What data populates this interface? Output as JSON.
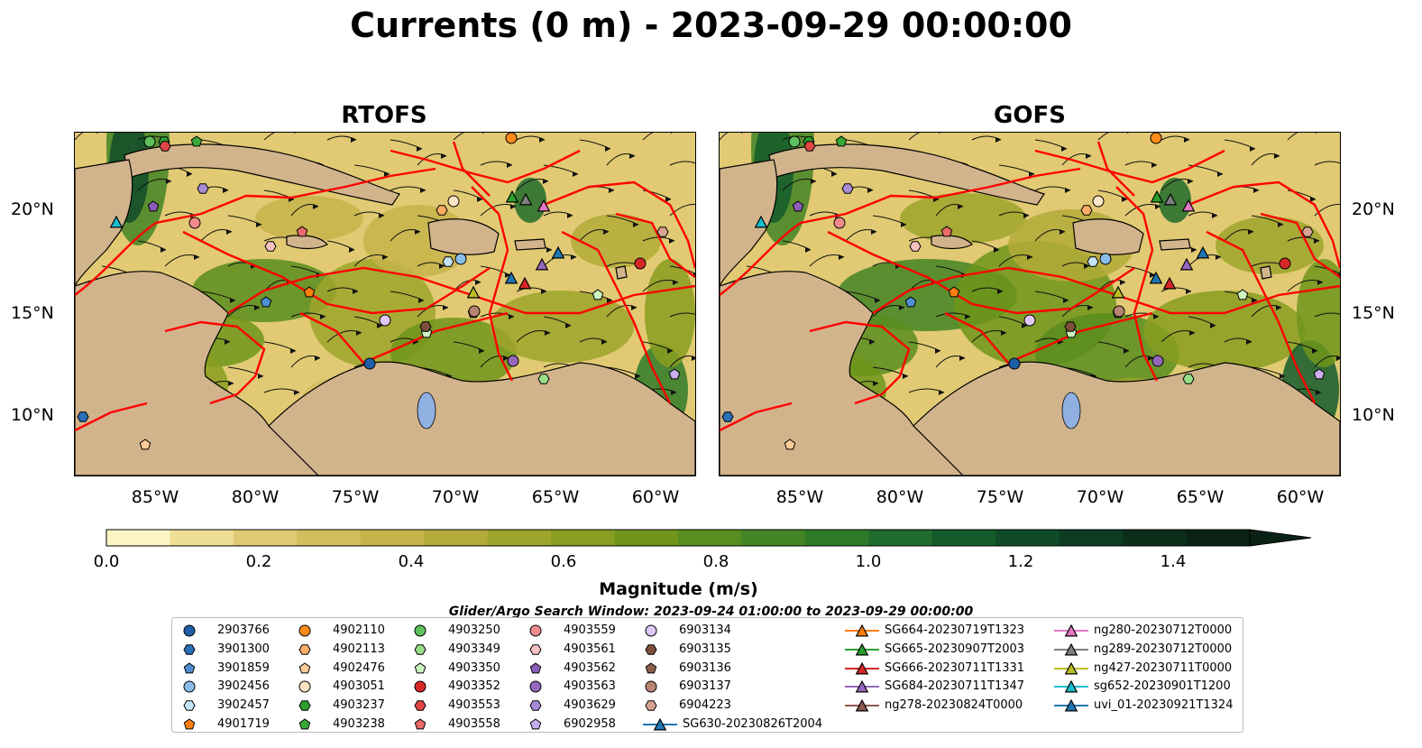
{
  "title": "Currents (0 m) - 2023-09-29 00:00:00",
  "panels": [
    {
      "title": "RTOFS"
    },
    {
      "title": "GOFS"
    }
  ],
  "axes": {
    "lat_ticks": [
      "20°N",
      "15°N",
      "10°N"
    ],
    "lon_ticks": [
      "85°W",
      "80°W",
      "75°W",
      "70°W",
      "65°W",
      "60°W"
    ],
    "lat_range": [
      7,
      24
    ],
    "lon_range": [
      -89,
      -58
    ]
  },
  "colorbar": {
    "label": "Magnitude (m/s)",
    "ticks": [
      "0.0",
      "0.2",
      "0.4",
      "0.6",
      "0.8",
      "1.0",
      "1.2",
      "1.4"
    ],
    "range": [
      0,
      1.5
    ],
    "extend": "max",
    "colors": [
      "#fbf5c4",
      "#efdf95",
      "#e1ca73",
      "#d3bd5d",
      "#c6b44a",
      "#b3ab39",
      "#9ea52c",
      "#889e20",
      "#6f951a",
      "#588d1f",
      "#438424",
      "#2f7a28",
      "#206c2c",
      "#145c2b",
      "#104b28",
      "#0e3c22",
      "#0c2e1b",
      "#0a2215"
    ]
  },
  "search_window": "Glider/Argo Search Window: 2023-09-24 01:00:00 to 2023-09-29 00:00:00",
  "map_colors": {
    "land": "#d2b48c",
    "eez": "#ff0000",
    "lake": "#8fb0e0"
  },
  "legend": {
    "argo": [
      {
        "name": "2903766",
        "marker": "circle",
        "color": "#1f5fa8"
      },
      {
        "name": "3901300",
        "marker": "hexagon",
        "color": "#2a6fb8"
      },
      {
        "name": "3901859",
        "marker": "pentagon",
        "color": "#4f8fcf"
      },
      {
        "name": "3902456",
        "marker": "circle",
        "color": "#88bde8"
      },
      {
        "name": "3902457",
        "marker": "hexagon",
        "color": "#c6e2f7"
      },
      {
        "name": "4901719",
        "marker": "pentagon",
        "color": "#ff7f0e"
      },
      {
        "name": "4902110",
        "marker": "circle",
        "color": "#ff8c1a"
      },
      {
        "name": "4902113",
        "marker": "hexagon",
        "color": "#ffad66"
      },
      {
        "name": "4902476",
        "marker": "pentagon",
        "color": "#ffcc99"
      },
      {
        "name": "4903051",
        "marker": "circle",
        "color": "#ffe3c4"
      },
      {
        "name": "4903237",
        "marker": "hexagon",
        "color": "#2ca02c"
      },
      {
        "name": "4903238",
        "marker": "pentagon",
        "color": "#38a838"
      },
      {
        "name": "4903250",
        "marker": "circle",
        "color": "#5cc05c"
      },
      {
        "name": "4903349",
        "marker": "hexagon",
        "color": "#98df8a"
      },
      {
        "name": "4903350",
        "marker": "pentagon",
        "color": "#cdf3c0"
      },
      {
        "name": "4903352",
        "marker": "circle",
        "color": "#d62728"
      },
      {
        "name": "4903553",
        "marker": "hexagon",
        "color": "#e04545"
      },
      {
        "name": "4903558",
        "marker": "pentagon",
        "color": "#ea6a6a"
      },
      {
        "name": "4903559",
        "marker": "circle",
        "color": "#f08a8a"
      },
      {
        "name": "4903561",
        "marker": "hexagon",
        "color": "#f8c1c1"
      },
      {
        "name": "4903562",
        "marker": "pentagon",
        "color": "#8a5cb8"
      },
      {
        "name": "4903563",
        "marker": "circle",
        "color": "#9467bd"
      },
      {
        "name": "4903629",
        "marker": "hexagon",
        "color": "#a98bd4"
      },
      {
        "name": "6902958",
        "marker": "pentagon",
        "color": "#c9aff0"
      },
      {
        "name": "6903134",
        "marker": "circle",
        "color": "#dfc7f7"
      },
      {
        "name": "6903135",
        "marker": "hexagon",
        "color": "#7f4f3e"
      },
      {
        "name": "6903136",
        "marker": "pentagon",
        "color": "#8c5e4a"
      },
      {
        "name": "6903137",
        "marker": "circle",
        "color": "#b88472"
      },
      {
        "name": "6904223",
        "marker": "hexagon",
        "color": "#d9a393"
      }
    ],
    "gliders": [
      {
        "name": "SG630-20230826T2004",
        "color": "#1f77b4"
      },
      {
        "name": "SG664-20230719T1323",
        "color": "#ff7f0e"
      },
      {
        "name": "SG665-20230907T2003",
        "color": "#2ca02c"
      },
      {
        "name": "SG666-20230711T1331",
        "color": "#d62728"
      },
      {
        "name": "SG684-20230711T1347",
        "color": "#9467bd"
      },
      {
        "name": "ng278-20230824T0000",
        "color": "#8c564b"
      },
      {
        "name": "ng280-20230712T0000",
        "color": "#e377c2"
      },
      {
        "name": "ng289-20230712T0000",
        "color": "#7f7f7f"
      },
      {
        "name": "ng427-20230711T0000",
        "color": "#bcbd22"
      },
      {
        "name": "sg652-20230901T1200",
        "color": "#17becf"
      },
      {
        "name": "uvi_01-20230921T1324",
        "color": "#1f77b4"
      }
    ]
  }
}
